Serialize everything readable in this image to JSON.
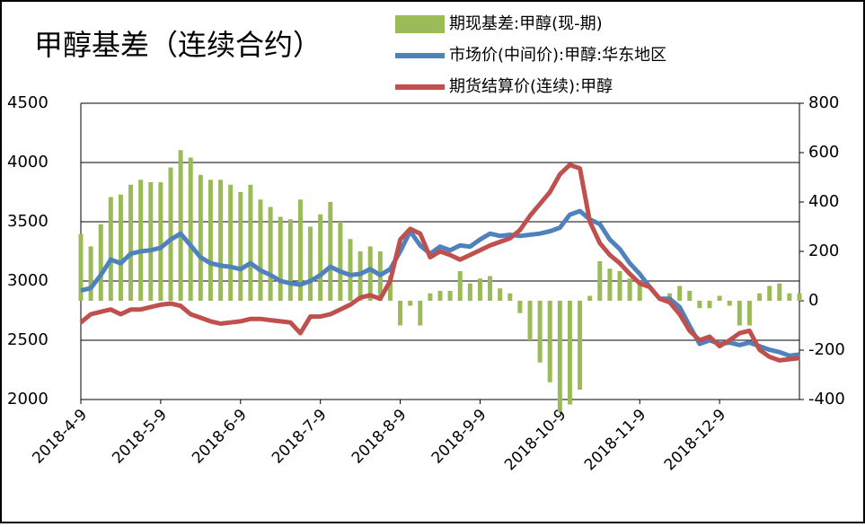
{
  "chart_data": {
    "type": "combo",
    "title": "甲醇基差（连续合约）",
    "categories": [
      "2018-4-9",
      null,
      null,
      null,
      null,
      null,
      null,
      null,
      "2018-5-9",
      null,
      null,
      null,
      null,
      null,
      null,
      null,
      "2018-6-9",
      null,
      null,
      null,
      null,
      null,
      null,
      null,
      "2018-7-9",
      null,
      null,
      null,
      null,
      null,
      null,
      null,
      "2018-8-9",
      null,
      null,
      null,
      null,
      null,
      null,
      null,
      "2018-9-9",
      null,
      null,
      null,
      null,
      null,
      null,
      null,
      "2018-10-9",
      null,
      null,
      null,
      null,
      null,
      null,
      null,
      "2018-11-9",
      null,
      null,
      null,
      null,
      null,
      null,
      null,
      "2018-12-9",
      null,
      null,
      null,
      null,
      null,
      null,
      null,
      null
    ],
    "series": [
      {
        "name": "期现基差:甲醇(现-期)",
        "type": "bar",
        "axis": "y2",
        "color": "#9bbb59",
        "values": [
          270,
          220,
          310,
          420,
          430,
          470,
          490,
          480,
          480,
          540,
          610,
          580,
          510,
          490,
          490,
          470,
          440,
          470,
          410,
          380,
          340,
          330,
          410,
          300,
          350,
          400,
          320,
          250,
          200,
          220,
          200,
          100,
          -100,
          -20,
          -100,
          30,
          40,
          40,
          120,
          70,
          90,
          100,
          50,
          30,
          -50,
          -160,
          -250,
          -330,
          -450,
          -420,
          -360,
          20,
          160,
          130,
          120,
          90,
          80,
          0,
          0,
          30,
          60,
          40,
          -30,
          -30,
          20,
          -20,
          -100,
          -100,
          30,
          60,
          70,
          30,
          30
        ]
      },
      {
        "name": "市场价(中间价):甲醇:华东地区",
        "type": "line",
        "color": "#4f81bd",
        "values": [
          2920,
          2940,
          3050,
          3180,
          3150,
          3230,
          3250,
          3260,
          3280,
          3350,
          3400,
          3300,
          3200,
          3150,
          3130,
          3120,
          3100,
          3150,
          3090,
          3050,
          3000,
          2980,
          2970,
          3000,
          3050,
          3120,
          3080,
          3050,
          3060,
          3100,
          3050,
          3100,
          3250,
          3420,
          3300,
          3230,
          3290,
          3260,
          3300,
          3290,
          3350,
          3400,
          3380,
          3390,
          3380,
          3390,
          3400,
          3420,
          3450,
          3560,
          3590,
          3520,
          3480,
          3350,
          3270,
          3150,
          3060,
          2950,
          2850,
          2850,
          2780,
          2620,
          2470,
          2500,
          2470,
          2480,
          2460,
          2480,
          2450,
          2420,
          2400,
          2370,
          2380
        ]
      },
      {
        "name": "期货结算价(连续):甲醇",
        "type": "line",
        "color": "#c0504d",
        "values": [
          2650,
          2720,
          2740,
          2760,
          2720,
          2760,
          2760,
          2780,
          2800,
          2810,
          2790,
          2720,
          2690,
          2660,
          2640,
          2650,
          2660,
          2680,
          2680,
          2670,
          2660,
          2650,
          2560,
          2700,
          2700,
          2720,
          2760,
          2800,
          2860,
          2880,
          2850,
          3000,
          3350,
          3440,
          3400,
          3200,
          3250,
          3220,
          3180,
          3220,
          3260,
          3300,
          3330,
          3360,
          3430,
          3550,
          3650,
          3750,
          3900,
          3980,
          3950,
          3500,
          3320,
          3220,
          3150,
          3060,
          2980,
          2950,
          2850,
          2820,
          2720,
          2580,
          2500,
          2530,
          2450,
          2500,
          2560,
          2580,
          2420,
          2360,
          2330,
          2340,
          2350
        ]
      }
    ],
    "ylim": [
      2000,
      4500
    ],
    "yticks": [
      2000,
      2500,
      3000,
      3500,
      4000,
      4500
    ],
    "y2lim": [
      -400,
      800
    ],
    "y2ticks": [
      -400,
      -200,
      0,
      200,
      400,
      600,
      800
    ],
    "grid": true
  }
}
